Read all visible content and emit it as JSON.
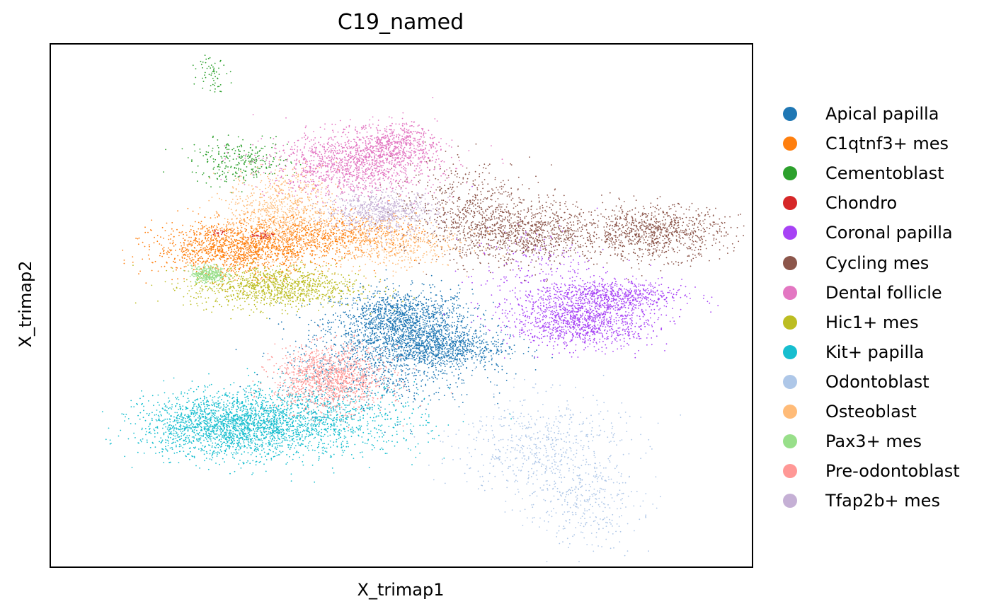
{
  "chart_data": {
    "type": "scatter",
    "title": "C19_named",
    "xlabel": "X_trimap1",
    "ylabel": "X_trimap2",
    "grid": false,
    "ticks": false,
    "legend_position": "right",
    "series": [
      {
        "name": "Apical papilla",
        "color": "#1f77b4",
        "clusters": [
          {
            "x": 0.5,
            "y": 0.47,
            "sx": 0.05,
            "sy": 0.03,
            "n": 1400
          },
          {
            "x": 0.55,
            "y": 0.42,
            "sx": 0.05,
            "sy": 0.02,
            "n": 900
          },
          {
            "x": 0.47,
            "y": 0.38,
            "sx": 0.07,
            "sy": 0.04,
            "n": 700
          }
        ]
      },
      {
        "name": "C1qtnf3+ mes",
        "color": "#ff7f0e",
        "clusters": [
          {
            "x": 0.27,
            "y": 0.61,
            "sx": 0.06,
            "sy": 0.025,
            "n": 1500
          },
          {
            "x": 0.41,
            "y": 0.635,
            "sx": 0.06,
            "sy": 0.02,
            "n": 600
          }
        ]
      },
      {
        "name": "Cementoblast",
        "color": "#2ca02c",
        "clusters": [
          {
            "x": 0.27,
            "y": 0.775,
            "sx": 0.035,
            "sy": 0.02,
            "n": 280
          },
          {
            "x": 0.23,
            "y": 0.95,
            "sx": 0.01,
            "sy": 0.02,
            "n": 60
          }
        ]
      },
      {
        "name": "Chondro",
        "color": "#d62728",
        "clusters": [
          {
            "x": 0.3,
            "y": 0.635,
            "sx": 0.01,
            "sy": 0.004,
            "n": 40
          },
          {
            "x": 0.24,
            "y": 0.64,
            "sx": 0.006,
            "sy": 0.003,
            "n": 20
          }
        ]
      },
      {
        "name": "Coronal papilla",
        "color": "#a742f5",
        "clusters": [
          {
            "x": 0.76,
            "y": 0.47,
            "sx": 0.05,
            "sy": 0.025,
            "n": 1100
          },
          {
            "x": 0.8,
            "y": 0.52,
            "sx": 0.05,
            "sy": 0.015,
            "n": 600
          },
          {
            "x": 0.7,
            "y": 0.55,
            "sx": 0.05,
            "sy": 0.05,
            "n": 300
          }
        ]
      },
      {
        "name": "Cycling mes",
        "color": "#8c564b",
        "clusters": [
          {
            "x": 0.67,
            "y": 0.64,
            "sx": 0.06,
            "sy": 0.03,
            "n": 1100
          },
          {
            "x": 0.86,
            "y": 0.64,
            "sx": 0.05,
            "sy": 0.025,
            "n": 900
          },
          {
            "x": 0.59,
            "y": 0.7,
            "sx": 0.05,
            "sy": 0.04,
            "n": 400
          }
        ]
      },
      {
        "name": "Dental follicle",
        "color": "#e377c2",
        "clusters": [
          {
            "x": 0.43,
            "y": 0.77,
            "sx": 0.06,
            "sy": 0.03,
            "n": 1300
          },
          {
            "x": 0.49,
            "y": 0.81,
            "sx": 0.03,
            "sy": 0.02,
            "n": 500
          }
        ]
      },
      {
        "name": "Hic1+ mes",
        "color": "#bcbd22",
        "clusters": [
          {
            "x": 0.32,
            "y": 0.535,
            "sx": 0.06,
            "sy": 0.02,
            "n": 1100
          }
        ]
      },
      {
        "name": "Kit+ papilla",
        "color": "#17becf",
        "clusters": [
          {
            "x": 0.25,
            "y": 0.27,
            "sx": 0.06,
            "sy": 0.03,
            "n": 1800
          },
          {
            "x": 0.37,
            "y": 0.28,
            "sx": 0.08,
            "sy": 0.035,
            "n": 1200
          }
        ]
      },
      {
        "name": "Odontoblast",
        "color": "#aec7e8",
        "clusters": [
          {
            "x": 0.7,
            "y": 0.23,
            "sx": 0.06,
            "sy": 0.05,
            "n": 600
          },
          {
            "x": 0.76,
            "y": 0.12,
            "sx": 0.04,
            "sy": 0.04,
            "n": 300
          }
        ]
      },
      {
        "name": "Osteoblast",
        "color": "#ffbb78",
        "clusters": [
          {
            "x": 0.33,
            "y": 0.68,
            "sx": 0.04,
            "sy": 0.04,
            "n": 800
          },
          {
            "x": 0.48,
            "y": 0.62,
            "sx": 0.05,
            "sy": 0.025,
            "n": 500
          }
        ]
      },
      {
        "name": "Pax3+ mes",
        "color": "#98df8a",
        "clusters": [
          {
            "x": 0.225,
            "y": 0.56,
            "sx": 0.012,
            "sy": 0.008,
            "n": 300
          }
        ]
      },
      {
        "name": "Pre-odontoblast",
        "color": "#ff9896",
        "clusters": [
          {
            "x": 0.4,
            "y": 0.36,
            "sx": 0.04,
            "sy": 0.03,
            "n": 1200
          }
        ]
      },
      {
        "name": "Tfap2b+ mes",
        "color": "#c5b0d5",
        "clusters": [
          {
            "x": 0.47,
            "y": 0.68,
            "sx": 0.04,
            "sy": 0.02,
            "n": 700
          }
        ]
      }
    ]
  }
}
